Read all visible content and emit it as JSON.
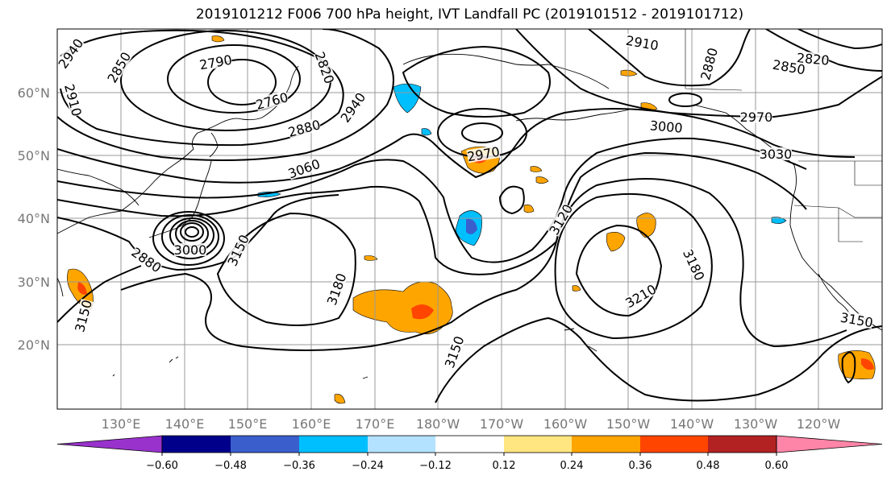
{
  "title": "2019101212 F006 700 hPa height, IVT Landfall PC (2019101512 - 2019101712)",
  "lat_labels": [
    "60°N",
    "50°N",
    "40°N",
    "30°N",
    "20°N"
  ],
  "lon_labels": [
    "130°E",
    "140°E",
    "150°E",
    "160°E",
    "170°E",
    "180°W",
    "170°W",
    "160°W",
    "150°W",
    "140°W",
    "130°W",
    "120°W"
  ],
  "contour_labels": [
    "2940",
    "2850",
    "2910",
    "2790",
    "2820",
    "2760",
    "2880",
    "2940",
    "3060",
    "2970",
    "3000",
    "2910",
    "2880",
    "2820",
    "2850",
    "2970",
    "3030",
    "3120",
    "3180",
    "3180",
    "3150",
    "3150",
    "3210",
    "3150",
    "3150",
    "3000",
    "2880"
  ],
  "colorbar": {
    "ticks": [
      "−0.60",
      "−0.48",
      "−0.36",
      "−0.24",
      "−0.12",
      "0.12",
      "0.24",
      "0.36",
      "0.48",
      "0.60"
    ],
    "colors": [
      "#9932cc",
      "#00008b",
      "#3a5fcd",
      "#00bfff",
      "#b2e2ff",
      "#ffffff",
      "#ffe680",
      "#ffa500",
      "#ff4500",
      "#b22222",
      "#ff85a8"
    ]
  },
  "colors": {
    "contour": "#000000",
    "grid": "#999999",
    "coast": "#000000"
  }
}
